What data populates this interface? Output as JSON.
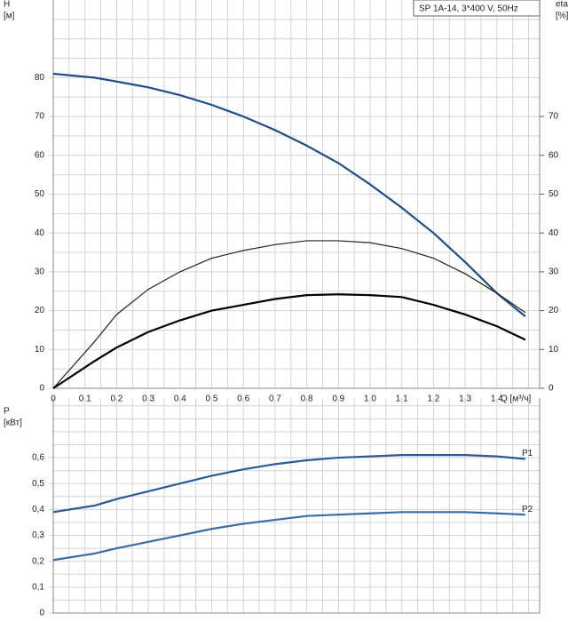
{
  "chart_data": [
    {
      "type": "line",
      "title": "SP 1A-14, 3*400 V, 50Hz",
      "ylabel": "H",
      "yunit": "[м]",
      "y2label": "eta",
      "y2unit": "[%]",
      "xlabel": "Q [м³/ч]",
      "x": [
        0,
        0.13,
        0.2,
        0.3,
        0.4,
        0.5,
        0.6,
        0.7,
        0.8,
        0.9,
        1.0,
        1.1,
        1.2,
        1.3,
        1.4,
        1.49
      ],
      "series": [
        {
          "color": "#1f4e8c",
          "values": [
            81,
            80,
            79,
            77.5,
            75.5,
            73,
            70,
            66.5,
            62.5,
            58,
            52.5,
            46.5,
            40,
            32.5,
            24.5,
            18.5
          ]
        },
        {
          "color": "#222222",
          "axis": "y2",
          "values": [
            0,
            12,
            19,
            25.5,
            30,
            33.5,
            35.5,
            37,
            38,
            38,
            37.5,
            36,
            33.5,
            29.5,
            24.5,
            19.5
          ]
        },
        {
          "color": "#000000",
          "axis": "y2",
          "values": [
            0,
            7,
            10.5,
            14.5,
            17.5,
            20,
            21.5,
            23,
            24,
            24.2,
            24,
            23.5,
            21.5,
            19,
            16,
            12.5
          ]
        }
      ],
      "xlim": [
        0,
        1.535
      ],
      "ylim": [
        0,
        100
      ],
      "y2lim": [
        0,
        100
      ],
      "xticks": [
        0,
        {
          "value": 0.1,
          "label": "0,1"
        },
        {
          "value": 0.2,
          "label": "0,2"
        },
        {
          "value": 0.3,
          "label": "0,3"
        },
        {
          "value": 0.4,
          "label": "0,4"
        },
        {
          "value": 0.5,
          "label": "0,5"
        },
        {
          "value": 0.6,
          "label": "0,6"
        },
        {
          "value": 0.7,
          "label": "0,7"
        },
        {
          "value": 0.8,
          "label": "0,8"
        },
        {
          "value": 0.9,
          "label": "0,9"
        },
        {
          "value": 1.0,
          "label": "1,0"
        },
        {
          "value": 1.1,
          "label": "1,1"
        },
        {
          "value": 1.2,
          "label": "1,2"
        },
        {
          "value": 1.3,
          "label": "1,3"
        },
        {
          "value": 1.4,
          "label": "1,4"
        }
      ],
      "yticks": [
        0,
        10,
        20,
        30,
        40,
        50,
        60,
        70,
        80
      ],
      "y2ticks": [
        0,
        10,
        20,
        30,
        40,
        50,
        60,
        70
      ],
      "xgrid": [
        0.05,
        0.15,
        0.25,
        0.35,
        0.45,
        0.55,
        0.65,
        0.75,
        0.85,
        0.95,
        1.05,
        1.15,
        1.25,
        1.35,
        1.45,
        1.5
      ],
      "ygrid": [
        5,
        15,
        25,
        35,
        45,
        55,
        65,
        75,
        85,
        90,
        95
      ]
    },
    {
      "type": "line",
      "ylabel": "P",
      "yunit": "[кВт]",
      "x": [
        0,
        0.13,
        0.2,
        0.3,
        0.4,
        0.5,
        0.6,
        0.7,
        0.8,
        0.9,
        1.0,
        1.1,
        1.2,
        1.3,
        1.4,
        1.49
      ],
      "series": [
        {
          "name": "P1",
          "color": "#2a5a9a",
          "values": [
            0.39,
            0.415,
            0.44,
            0.47,
            0.5,
            0.53,
            0.555,
            0.575,
            0.59,
            0.6,
            0.605,
            0.61,
            0.61,
            0.61,
            0.605,
            0.595
          ]
        },
        {
          "name": "P2",
          "color": "#3b6aa8",
          "values": [
            0.205,
            0.23,
            0.25,
            0.275,
            0.3,
            0.325,
            0.345,
            0.36,
            0.375,
            0.38,
            0.385,
            0.39,
            0.39,
            0.39,
            0.385,
            0.38
          ]
        }
      ],
      "xlim": [
        0,
        1.535
      ],
      "ylim": [
        0,
        0.83
      ],
      "yticks": [
        0,
        {
          "value": 0.1,
          "label": "0,1"
        },
        {
          "value": 0.2,
          "label": "0,2"
        },
        {
          "value": 0.3,
          "label": "0,3"
        },
        {
          "value": 0.4,
          "label": "0,4"
        },
        {
          "value": 0.5,
          "label": "0,5"
        },
        {
          "value": 0.6,
          "label": "0,6"
        }
      ],
      "xgrid": [
        0,
        0.05,
        0.1,
        0.15,
        0.2,
        0.25,
        0.3,
        0.35,
        0.4,
        0.45,
        0.5,
        0.55,
        0.6,
        0.65,
        0.7,
        0.75,
        0.8,
        0.85,
        0.9,
        0.95,
        1.0,
        1.05,
        1.1,
        1.15,
        1.2,
        1.25,
        1.3,
        1.35,
        1.4,
        1.45,
        1.5
      ],
      "ygrid": [
        0.05,
        0.15,
        0.25,
        0.35,
        0.45,
        0.55,
        0.65,
        0.7,
        0.75,
        0.8
      ]
    }
  ]
}
